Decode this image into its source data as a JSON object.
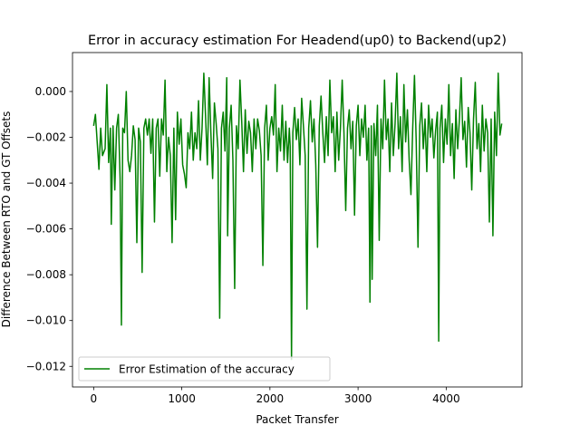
{
  "chart_data": {
    "type": "line",
    "title": "Error in accuracy estimation For Headend(up0) to Backend(up2)",
    "xlabel": "Packet Transfer",
    "ylabel": "Difference Between RTO and GT Offsets",
    "xlim": [
      -240,
      4860
    ],
    "ylim": [
      -0.0129,
      0.0017
    ],
    "xticks": [
      0,
      1000,
      2000,
      3000,
      4000
    ],
    "xtick_labels": [
      "0",
      "1000",
      "2000",
      "3000",
      "4000"
    ],
    "yticks": [
      0.0,
      -0.002,
      -0.004,
      -0.006,
      -0.008,
      -0.01,
      -0.012
    ],
    "ytick_labels": [
      "0.000",
      "−0.002",
      "−0.004",
      "−0.006",
      "−0.008",
      "−0.010",
      "−0.012"
    ],
    "grid": false,
    "legend_position": "lower-left",
    "series": [
      {
        "name": "Error Estimation of the accuracy",
        "color": "#008000",
        "points": [
          [
            0,
            -0.0015
          ],
          [
            20,
            -0.001
          ],
          [
            40,
            -0.0022
          ],
          [
            60,
            -0.0034
          ],
          [
            80,
            -0.0016
          ],
          [
            100,
            -0.0028
          ],
          [
            130,
            -0.0025
          ],
          [
            150,
            0.0003
          ],
          [
            170,
            -0.0031
          ],
          [
            190,
            -0.0016
          ],
          [
            200,
            -0.0058
          ],
          [
            220,
            -0.0015
          ],
          [
            240,
            -0.0043
          ],
          [
            260,
            -0.0016
          ],
          [
            280,
            -0.001
          ],
          [
            300,
            -0.0038
          ],
          [
            315,
            -0.0102
          ],
          [
            330,
            -0.0016
          ],
          [
            350,
            -0.0018
          ],
          [
            370,
            0.0
          ],
          [
            390,
            -0.003
          ],
          [
            410,
            -0.0035
          ],
          [
            430,
            -0.0028
          ],
          [
            450,
            -0.0015
          ],
          [
            470,
            -0.0021
          ],
          [
            490,
            -0.0066
          ],
          [
            510,
            -0.0016
          ],
          [
            530,
            -0.0022
          ],
          [
            550,
            -0.0079
          ],
          [
            570,
            -0.0016
          ],
          [
            590,
            -0.0012
          ],
          [
            610,
            -0.0019
          ],
          [
            630,
            -0.0012
          ],
          [
            650,
            -0.0027
          ],
          [
            670,
            -0.0012
          ],
          [
            690,
            -0.0057
          ],
          [
            710,
            -0.0016
          ],
          [
            730,
            -0.0012
          ],
          [
            750,
            -0.0037
          ],
          [
            770,
            -0.0012
          ],
          [
            790,
            -0.0019
          ],
          [
            810,
            0.0005
          ],
          [
            830,
            -0.0035
          ],
          [
            850,
            -0.002
          ],
          [
            870,
            -0.0028
          ],
          [
            890,
            -0.0066
          ],
          [
            910,
            -0.0016
          ],
          [
            930,
            -0.0056
          ],
          [
            950,
            -0.0009
          ],
          [
            970,
            -0.0023
          ],
          [
            990,
            -0.0012
          ],
          [
            1010,
            -0.0032
          ],
          [
            1030,
            -0.0036
          ],
          [
            1050,
            -0.0042
          ],
          [
            1070,
            -0.0018
          ],
          [
            1090,
            -0.0025
          ],
          [
            1110,
            -0.0009
          ],
          [
            1130,
            -0.003
          ],
          [
            1150,
            -0.0018
          ],
          [
            1170,
            -0.0025
          ],
          [
            1190,
            -0.0004
          ],
          [
            1210,
            -0.003
          ],
          [
            1230,
            -0.0016
          ],
          [
            1250,
            0.0008
          ],
          [
            1270,
            -0.0011
          ],
          [
            1290,
            -0.0032
          ],
          [
            1310,
            0.0006
          ],
          [
            1330,
            -0.0018
          ],
          [
            1350,
            -0.0038
          ],
          [
            1370,
            -0.0005
          ],
          [
            1390,
            -0.0014
          ],
          [
            1410,
            -0.0025
          ],
          [
            1430,
            -0.0099
          ],
          [
            1450,
            -0.0016
          ],
          [
            1470,
            -0.0009
          ],
          [
            1490,
            -0.0026
          ],
          [
            1510,
            0.0006
          ],
          [
            1520,
            -0.0063
          ],
          [
            1540,
            -0.0016
          ],
          [
            1560,
            -0.0006
          ],
          [
            1580,
            -0.003
          ],
          [
            1600,
            -0.0086
          ],
          [
            1620,
            -0.0015
          ],
          [
            1640,
            -0.0025
          ],
          [
            1660,
            0.0005
          ],
          [
            1680,
            -0.0013
          ],
          [
            1700,
            -0.0035
          ],
          [
            1720,
            -0.0008
          ],
          [
            1740,
            -0.0027
          ],
          [
            1760,
            -0.0013
          ],
          [
            1780,
            -0.0018
          ],
          [
            1800,
            -0.0035
          ],
          [
            1820,
            -0.0012
          ],
          [
            1840,
            -0.0025
          ],
          [
            1860,
            -0.0012
          ],
          [
            1880,
            -0.0017
          ],
          [
            1900,
            -0.0028
          ],
          [
            1920,
            -0.0076
          ],
          [
            1940,
            -0.0016
          ],
          [
            1960,
            -0.0006
          ],
          [
            1980,
            -0.003
          ],
          [
            2000,
            -0.0016
          ],
          [
            2020,
            -0.0011
          ],
          [
            2040,
            -0.0019
          ],
          [
            2060,
            0.0003
          ],
          [
            2080,
            -0.0035
          ],
          [
            2100,
            -0.0016
          ],
          [
            2120,
            -0.0026
          ],
          [
            2140,
            -0.0006
          ],
          [
            2160,
            -0.003
          ],
          [
            2180,
            -0.0013
          ],
          [
            2200,
            -0.0031
          ],
          [
            2220,
            -0.0016
          ],
          [
            2230,
            -0.0024
          ],
          [
            2245,
            -0.0117
          ],
          [
            2260,
            -0.0018
          ],
          [
            2280,
            -0.0007
          ],
          [
            2300,
            -0.0021
          ],
          [
            2320,
            -0.0012
          ],
          [
            2340,
            -0.0032
          ],
          [
            2360,
            -0.0003
          ],
          [
            2380,
            -0.0015
          ],
          [
            2400,
            -0.0028
          ],
          [
            2420,
            -0.0095
          ],
          [
            2440,
            -0.0016
          ],
          [
            2460,
            -0.0004
          ],
          [
            2480,
            -0.0022
          ],
          [
            2500,
            -0.0012
          ],
          [
            2520,
            -0.0032
          ],
          [
            2540,
            -0.0068
          ],
          [
            2560,
            -0.0015
          ],
          [
            2580,
            -0.0002
          ],
          [
            2600,
            -0.0018
          ],
          [
            2620,
            -0.0031
          ],
          [
            2640,
            -0.0011
          ],
          [
            2660,
            -0.0028
          ],
          [
            2680,
            0.0005
          ],
          [
            2700,
            -0.0018
          ],
          [
            2720,
            -0.0011
          ],
          [
            2740,
            -0.0035
          ],
          [
            2760,
            -0.0009
          ],
          [
            2780,
            -0.003
          ],
          [
            2800,
            -0.0016
          ],
          [
            2820,
            0.0005
          ],
          [
            2840,
            -0.0018
          ],
          [
            2860,
            -0.0052
          ],
          [
            2880,
            -0.0016
          ],
          [
            2900,
            -0.0008
          ],
          [
            2920,
            -0.0025
          ],
          [
            2940,
            -0.0013
          ],
          [
            2960,
            -0.0054
          ],
          [
            2980,
            -0.0015
          ],
          [
            3000,
            -0.0006
          ],
          [
            3020,
            -0.0028
          ],
          [
            3040,
            -0.0012
          ],
          [
            3060,
            -0.002
          ],
          [
            3080,
            -0.0006
          ],
          [
            3100,
            -0.003
          ],
          [
            3120,
            -0.0016
          ],
          [
            3135,
            -0.0092
          ],
          [
            3150,
            -0.0015
          ],
          [
            3160,
            -0.0082
          ],
          [
            3180,
            -0.0014
          ],
          [
            3200,
            -0.0028
          ],
          [
            3220,
            -0.0006
          ],
          [
            3240,
            -0.0065
          ],
          [
            3260,
            -0.0012
          ],
          [
            3280,
            -0.0025
          ],
          [
            3300,
            0.0005
          ],
          [
            3320,
            -0.0021
          ],
          [
            3340,
            -0.0012
          ],
          [
            3360,
            -0.0035
          ],
          [
            3380,
            -0.0005
          ],
          [
            3400,
            -0.0028
          ],
          [
            3420,
            -0.0014
          ],
          [
            3440,
            0.0008
          ],
          [
            3460,
            -0.0025
          ],
          [
            3480,
            -0.0011
          ],
          [
            3500,
            -0.0035
          ],
          [
            3520,
            0.0003
          ],
          [
            3540,
            -0.0022
          ],
          [
            3560,
            -0.0008
          ],
          [
            3580,
            -0.003
          ],
          [
            3600,
            -0.0045
          ],
          [
            3620,
            -0.0016
          ],
          [
            3640,
            0.0007
          ],
          [
            3660,
            -0.0022
          ],
          [
            3680,
            -0.0068
          ],
          [
            3700,
            -0.0015
          ],
          [
            3720,
            -0.0005
          ],
          [
            3740,
            -0.0025
          ],
          [
            3760,
            -0.0012
          ],
          [
            3780,
            -0.0035
          ],
          [
            3800,
            -0.0006
          ],
          [
            3820,
            -0.002
          ],
          [
            3840,
            -0.0012
          ],
          [
            3860,
            -0.0029
          ],
          [
            3880,
            -0.0017
          ],
          [
            3900,
            -0.0009
          ],
          [
            3915,
            -0.0109
          ],
          [
            3930,
            -0.0016
          ],
          [
            3950,
            -0.0006
          ],
          [
            3970,
            -0.0031
          ],
          [
            3990,
            -0.0012
          ],
          [
            4010,
            -0.0023
          ],
          [
            4030,
            0.0003
          ],
          [
            4050,
            -0.0028
          ],
          [
            4070,
            -0.0014
          ],
          [
            4090,
            -0.0038
          ],
          [
            4110,
            -0.0008
          ],
          [
            4130,
            -0.0025
          ],
          [
            4150,
            -0.0012
          ],
          [
            4170,
            0.0006
          ],
          [
            4190,
            -0.0021
          ],
          [
            4210,
            -0.0013
          ],
          [
            4230,
            -0.0033
          ],
          [
            4250,
            -0.0007
          ],
          [
            4270,
            -0.0018
          ],
          [
            4290,
            -0.0043
          ],
          [
            4310,
            -0.0012
          ],
          [
            4330,
            0.0004
          ],
          [
            4350,
            -0.0025
          ],
          [
            4370,
            -0.0014
          ],
          [
            4390,
            -0.0035
          ],
          [
            4410,
            -0.0006
          ],
          [
            4430,
            -0.0026
          ],
          [
            4450,
            -0.0012
          ],
          [
            4470,
            -0.0018
          ],
          [
            4490,
            -0.0057
          ],
          [
            4510,
            -0.0012
          ],
          [
            4530,
            -0.0063
          ],
          [
            4550,
            -0.0009
          ],
          [
            4570,
            -0.0028
          ],
          [
            4590,
            0.0008
          ],
          [
            4610,
            -0.0019
          ],
          [
            4630,
            -0.0014
          ]
        ]
      }
    ]
  }
}
